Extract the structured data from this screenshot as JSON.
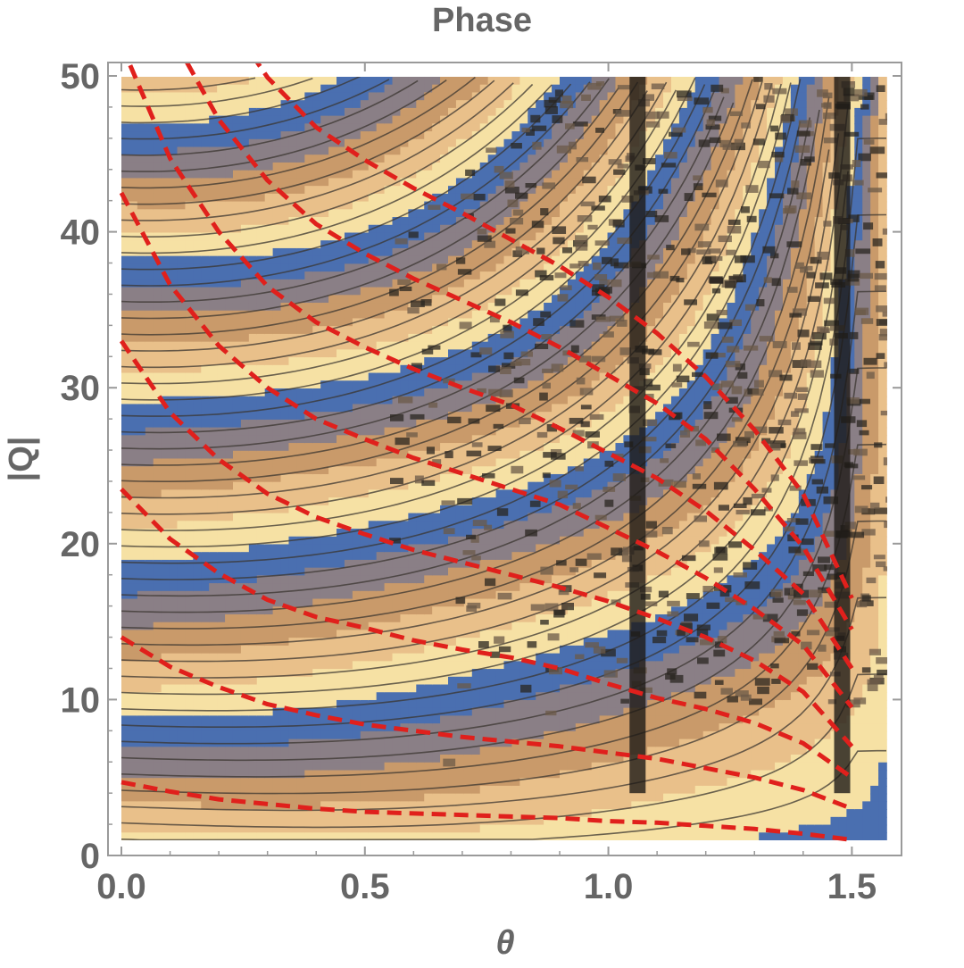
{
  "chart_data": {
    "type": "heatmap",
    "title": "Phase",
    "xlabel": "θ",
    "ylabel": "|Q|",
    "xlim": [
      0,
      1.5708
    ],
    "ylim": [
      0,
      50
    ],
    "x_ticks": [
      "0.0",
      "0.5",
      "1.0",
      "1.5"
    ],
    "x_tick_values": [
      0,
      0.5,
      1.0,
      1.5
    ],
    "y_ticks": [
      "0",
      "10",
      "20",
      "30",
      "40",
      "50"
    ],
    "y_tick_values": [
      0,
      10,
      20,
      30,
      40,
      50
    ],
    "data_domain": {
      "x": [
        0,
        1.5708
      ],
      "y": [
        1,
        50
      ]
    },
    "colormap": [
      "#f6e1a4",
      "#e9c08a",
      "#c99a6a",
      "#8a7f86",
      "#4a6fb0"
    ],
    "contour_color": "#3b3530",
    "noisy_bands_theta": [
      1.06,
      1.48
    ],
    "overlay_curves": {
      "color": "#e0201c",
      "style": "dashed",
      "theta": [
        0,
        0.1,
        0.2,
        0.3,
        0.4,
        0.5,
        0.6,
        0.7,
        0.8,
        0.9,
        1.0,
        1.1,
        1.2,
        1.3,
        1.4,
        1.5
      ],
      "series": [
        {
          "q": [
            4.7,
            4.1,
            3.6,
            3.3,
            3.0,
            2.8,
            2.7,
            2.6,
            2.5,
            2.4,
            2.2,
            2.1,
            1.9,
            1.7,
            1.4,
            1.0
          ]
        },
        {
          "q": [
            14.0,
            12.1,
            10.8,
            9.7,
            9.0,
            8.4,
            8.0,
            7.6,
            7.3,
            7.0,
            6.6,
            6.2,
            5.6,
            5.0,
            4.2,
            3.0
          ]
        },
        {
          "q": [
            23.5,
            20.3,
            18.1,
            16.4,
            15.3,
            14.6,
            13.8,
            13.2,
            12.7,
            12.0,
            11.0,
            10.1,
            9.4,
            8.5,
            7.2,
            5.0
          ]
        },
        {
          "q": [
            33.0,
            28.4,
            25.4,
            23.2,
            21.7,
            20.6,
            19.6,
            18.8,
            18.0,
            17.2,
            16.3,
            15.2,
            14.0,
            12.5,
            10.5,
            7.0
          ]
        },
        {
          "q": [
            42.5,
            36.6,
            32.7,
            30.0,
            28.0,
            26.7,
            25.5,
            24.5,
            23.5,
            22.5,
            21.0,
            19.5,
            17.8,
            15.8,
            13.5,
            9.5
          ]
        },
        {
          "q": [
            52.0,
            44.7,
            40.0,
            36.5,
            34.2,
            32.6,
            31.2,
            30.0,
            28.9,
            27.4,
            25.8,
            24.2,
            22.1,
            19.6,
            16.8,
            12.0
          ]
        },
        {
          "q": [
            61.5,
            52.8,
            47.2,
            43.3,
            40.5,
            38.6,
            37.0,
            35.6,
            34.2,
            32.6,
            30.8,
            29.0,
            26.7,
            23.5,
            19.8,
            14.5
          ]
        },
        {
          "q": [
            71.0,
            61.0,
            54.5,
            49.9,
            46.7,
            44.6,
            42.8,
            41.2,
            39.5,
            37.8,
            35.8,
            33.5,
            30.7,
            27.3,
            23.2,
            16.5
          ]
        }
      ]
    }
  }
}
